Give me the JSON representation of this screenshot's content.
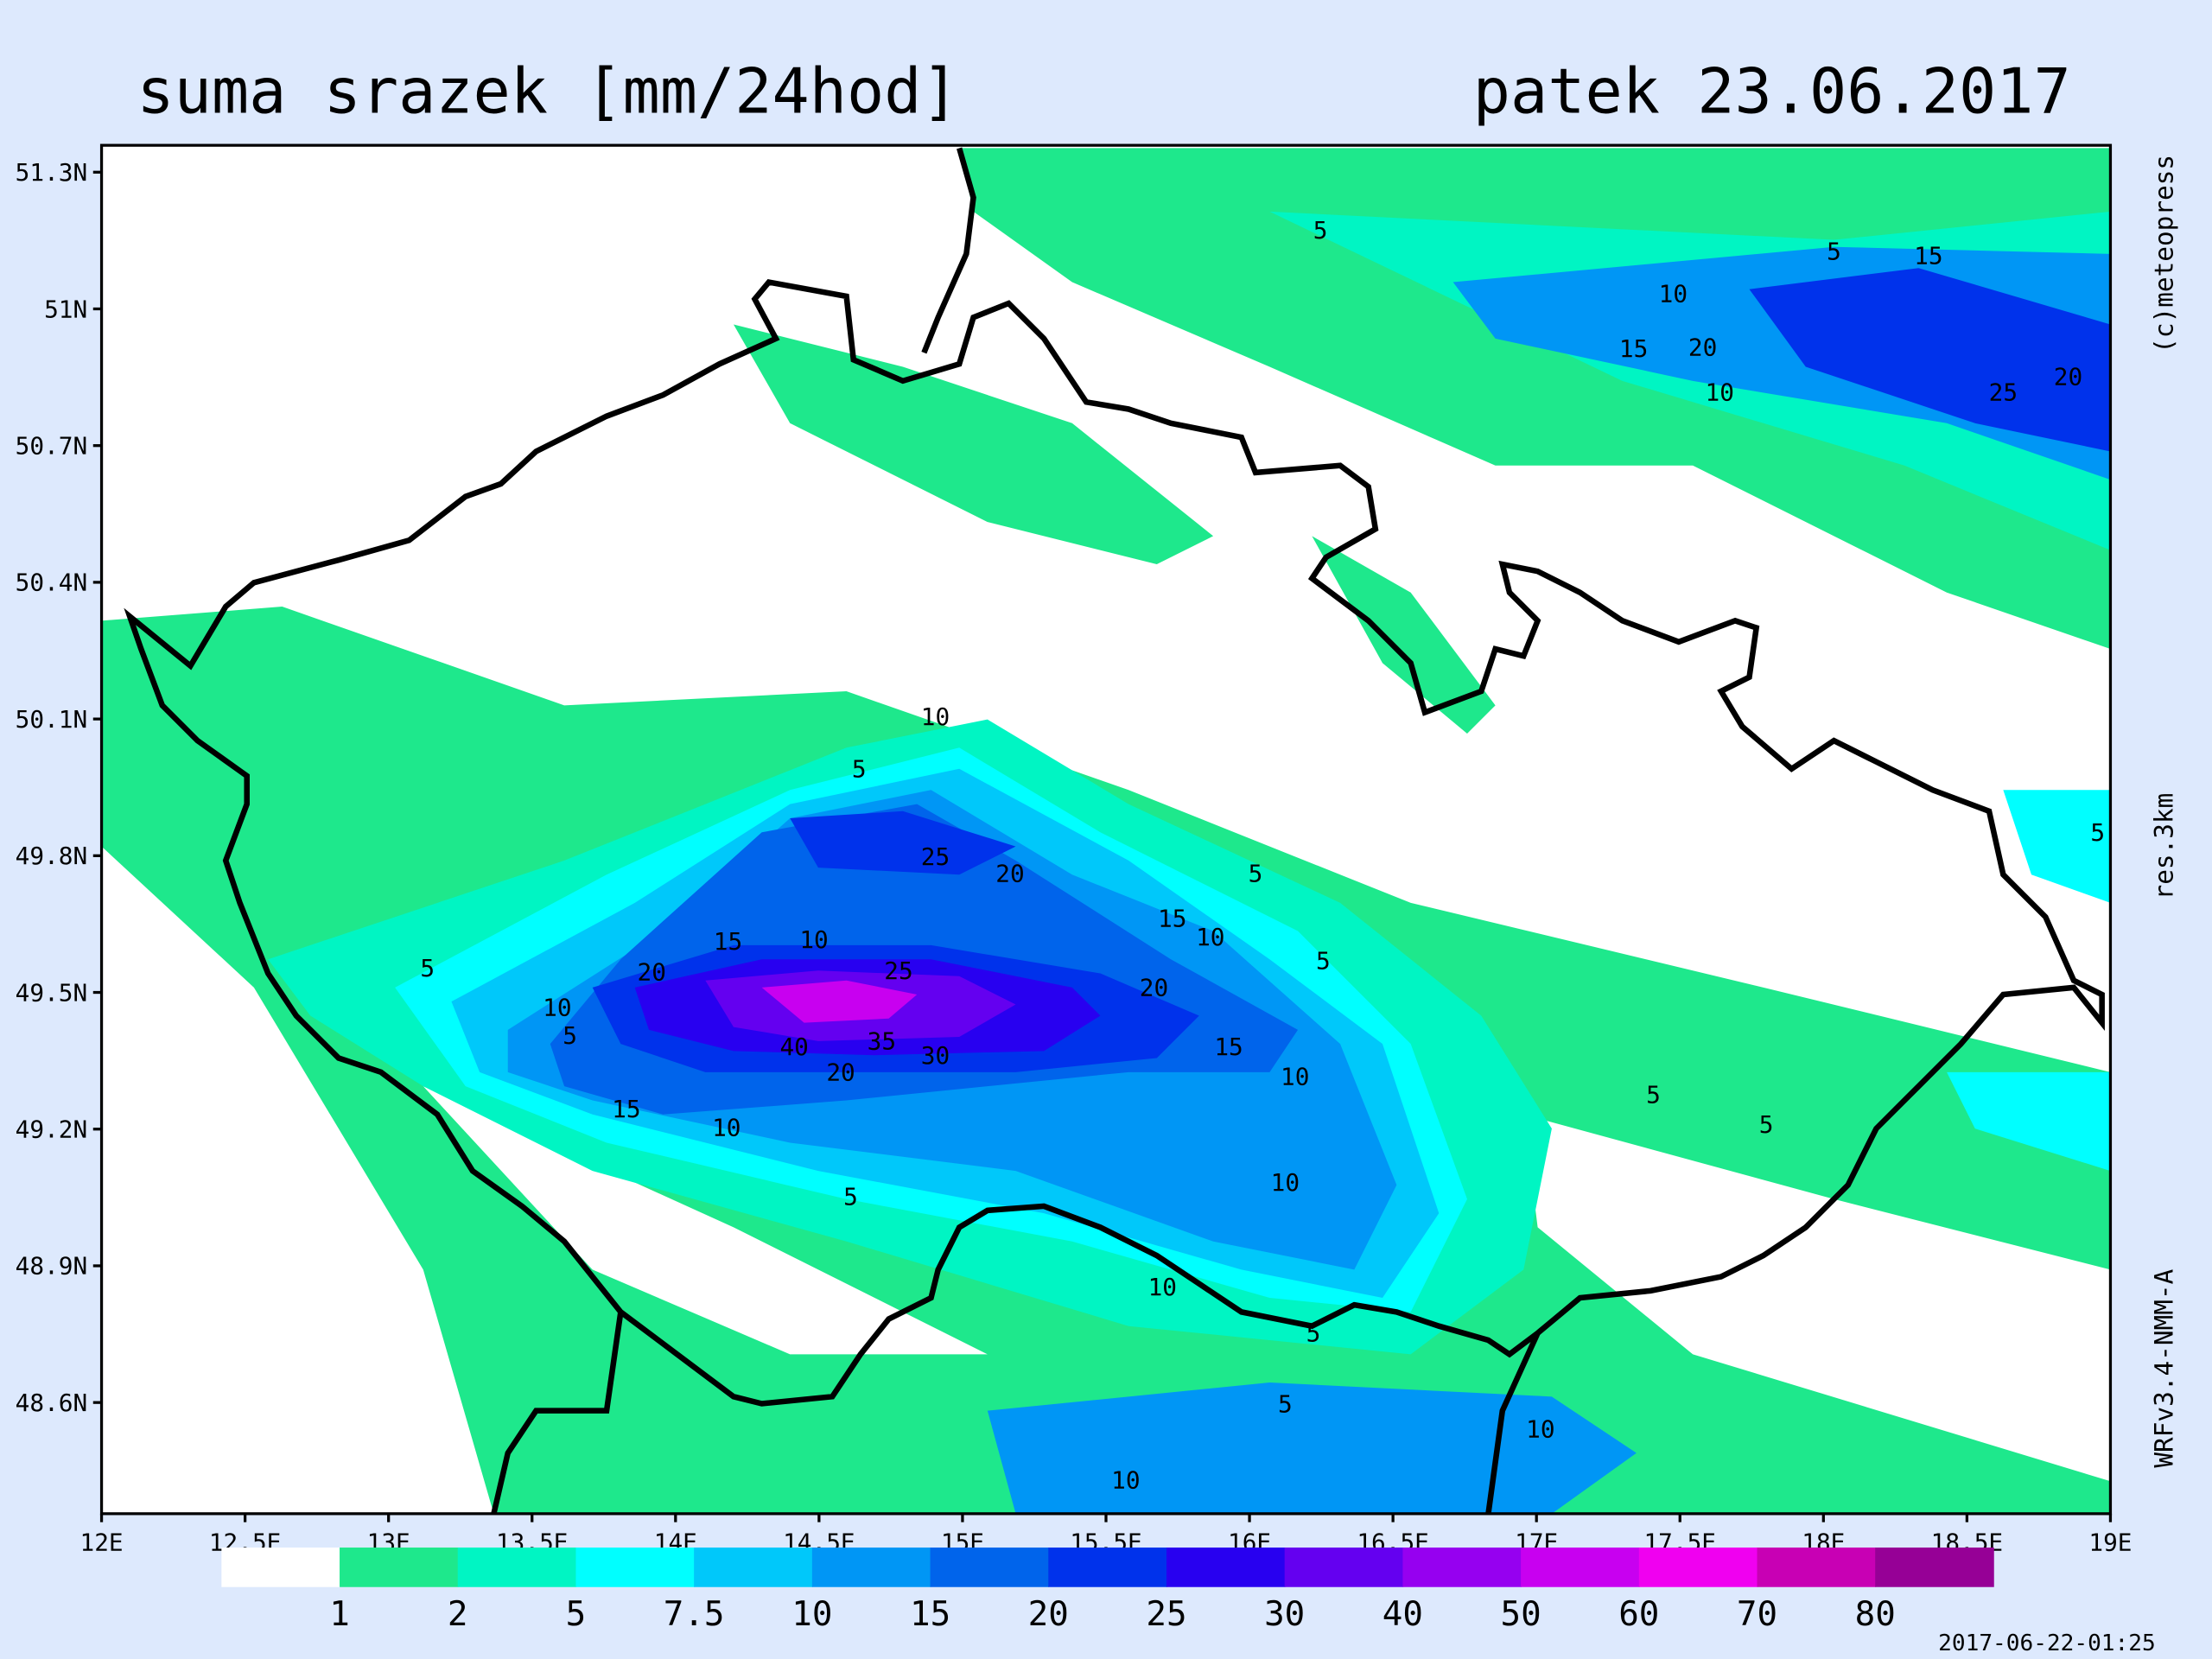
{
  "title": "suma srazek [mm/24hod]",
  "date": "patek 23.06.2017",
  "credit": "(c)meteopress",
  "resolution": "res.3km",
  "model": "WRFv3.4-NMM-A",
  "timestamp": "2017-06-22-01:25",
  "map": {
    "xlim": [
      12,
      19
    ],
    "ylim": [
      48.356,
      51.359
    ],
    "xticks": [
      {
        "value": 12,
        "label": "12E"
      },
      {
        "value": 12.5,
        "label": "12.5E"
      },
      {
        "value": 13,
        "label": "13E"
      },
      {
        "value": 13.5,
        "label": "13.5E"
      },
      {
        "value": 14,
        "label": "14E"
      },
      {
        "value": 14.5,
        "label": "14.5E"
      },
      {
        "value": 15,
        "label": "15E"
      },
      {
        "value": 15.5,
        "label": "15.5E"
      },
      {
        "value": 16,
        "label": "16E"
      },
      {
        "value": 16.5,
        "label": "16.5E"
      },
      {
        "value": 17,
        "label": "17E"
      },
      {
        "value": 17.5,
        "label": "17.5E"
      },
      {
        "value": 18,
        "label": "18E"
      },
      {
        "value": 18.5,
        "label": "18.5E"
      },
      {
        "value": 19,
        "label": "19E"
      }
    ],
    "yticks": [
      {
        "value": 51.3,
        "label": "51.3N"
      },
      {
        "value": 51,
        "label": "51N"
      },
      {
        "value": 50.7,
        "label": "50.7N"
      },
      {
        "value": 50.4,
        "label": "50.4N"
      },
      {
        "value": 50.1,
        "label": "50.1N"
      },
      {
        "value": 49.8,
        "label": "49.8N"
      },
      {
        "value": 49.5,
        "label": "49.5N"
      },
      {
        "value": 49.2,
        "label": "49.2N"
      },
      {
        "value": 48.9,
        "label": "48.9N"
      },
      {
        "value": 48.6,
        "label": "48.6N"
      }
    ],
    "contour_labels": [
      "5",
      "5",
      "15",
      "10",
      "15",
      "20",
      "10",
      "25",
      "20",
      "10",
      "5",
      "25",
      "20",
      "5",
      "15",
      "10",
      "15",
      "10",
      "5",
      "20",
      "25",
      "5",
      "20",
      "10",
      "5",
      "15",
      "40",
      "35",
      "30",
      "20",
      "10",
      "5",
      "15",
      "10",
      "5",
      "10",
      "5",
      "10",
      "5",
      "5",
      "10",
      "10",
      "5"
    ]
  },
  "legend": {
    "bounds": [
      1,
      2,
      5,
      7.5,
      10,
      15,
      20,
      25,
      30,
      40,
      50,
      60,
      70,
      80
    ],
    "colors": [
      "#ffffff",
      "#1ee88c",
      "#00f5c3",
      "#00ffff",
      "#00c8fa",
      "#0096f5",
      "#0064eb",
      "#0032eb",
      "#2800f0",
      "#6400f0",
      "#9600f0",
      "#c800f0",
      "#f000f0",
      "#c800b4",
      "#960096"
    ]
  }
}
